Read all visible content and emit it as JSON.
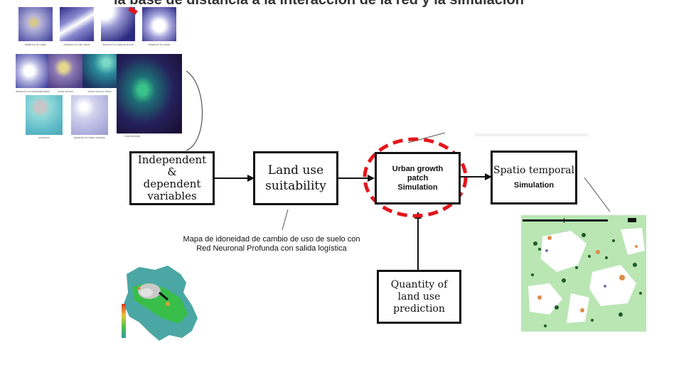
{
  "top_banner_fragment": "la base de distancia a la interacción de la red y la simulación",
  "panel_captions": [
    "distance to roads",
    "distance to rail roads",
    "distance to natural areas",
    "distance to urban",
    "distance to industrial/public",
    "urban slums",
    "travel time to cities",
    "road density",
    "pressure",
    "distance to water shapes"
  ],
  "nodes": {
    "independent": "Independent\n&\ndependent\nvariables",
    "suitability": "Land use\nsuitability",
    "urban_growth": "Urban growth\npatch\nSimulation",
    "spatio_temporal_title": "Spatio temporal",
    "spatio_temporal_sub": "Simulation",
    "quantity": "Quantity of\nland use\nprediction"
  },
  "annotation": "Mapa de idoneidad de cambio de uso de suelo con\nRed Neuronal Profunda con salida logística",
  "colors": {
    "highlight_ring": "#e3161b",
    "box_border": "#111111",
    "map_teal": "#4aa7a4",
    "map_green": "#35c23a",
    "sim_green": "#b9e6b3",
    "sim_dark": "#1f5a2a",
    "sim_orange": "#e0894a"
  }
}
